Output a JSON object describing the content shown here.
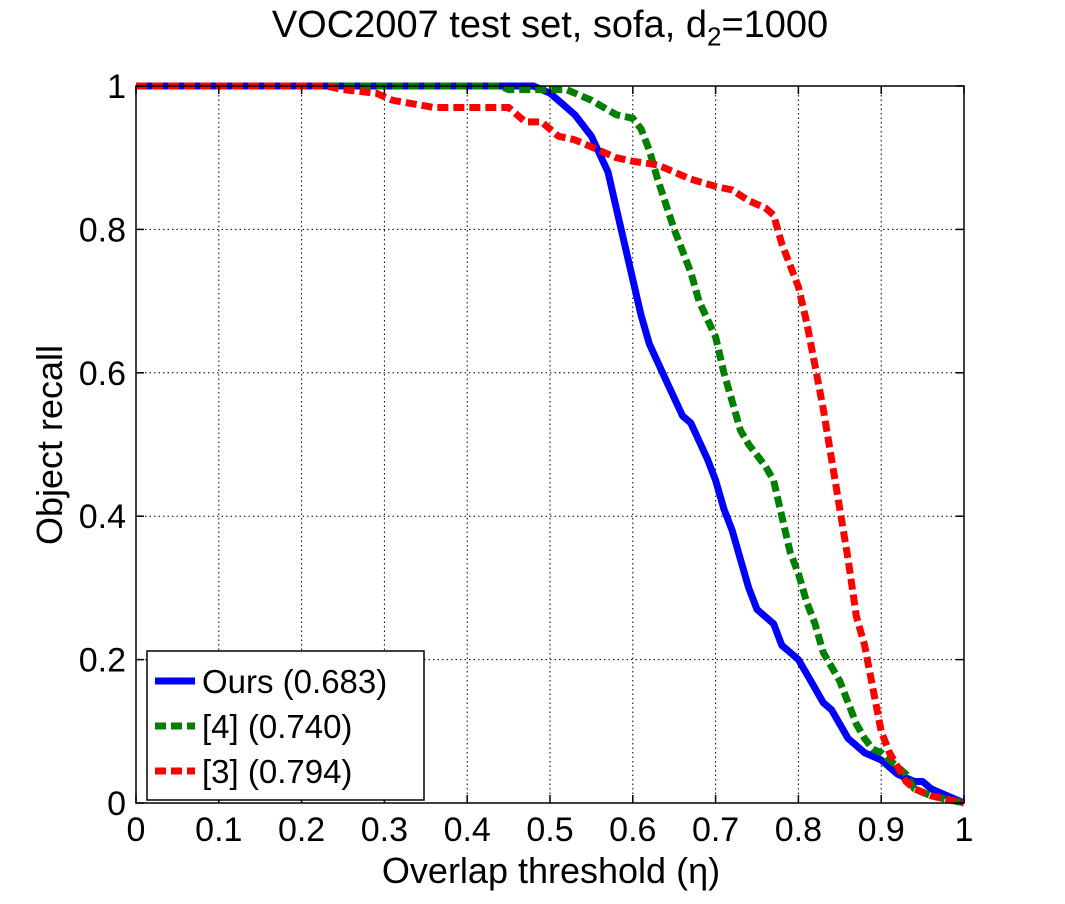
{
  "chart_data": {
    "type": "line",
    "title_main": "VOC2007 test set, sofa, d",
    "title_sub": "2",
    "title_tail": "=1000",
    "xlabel": "Overlap threshold (η)",
    "ylabel": "Object recall",
    "xlim": [
      0,
      1
    ],
    "ylim": [
      0,
      1
    ],
    "grid": true,
    "legend_position": "bottom-left",
    "x_ticks": [
      0,
      0.1,
      0.2,
      0.3,
      0.4,
      0.5,
      0.6,
      0.7,
      0.8,
      0.9,
      1
    ],
    "x_tick_labels": [
      "0",
      "0.1",
      "0.2",
      "0.3",
      "0.4",
      "0.5",
      "0.6",
      "0.7",
      "0.8",
      "0.9",
      "1"
    ],
    "y_ticks": [
      0,
      0.2,
      0.4,
      0.6,
      0.8,
      1
    ],
    "y_tick_labels": [
      "0",
      "0.2",
      "0.4",
      "0.6",
      "0.8",
      "1"
    ],
    "series": [
      {
        "name": "Ours (0.683)",
        "color": "#0000ff",
        "style": "solid",
        "x": [
          0,
          0.48,
          0.5,
          0.52,
          0.53,
          0.55,
          0.57,
          0.58,
          0.59,
          0.6,
          0.61,
          0.62,
          0.64,
          0.66,
          0.67,
          0.69,
          0.7,
          0.71,
          0.72,
          0.73,
          0.74,
          0.75,
          0.76,
          0.77,
          0.78,
          0.79,
          0.8,
          0.81,
          0.82,
          0.83,
          0.84,
          0.85,
          0.86,
          0.87,
          0.88,
          0.9,
          0.92,
          0.94,
          0.95,
          0.96,
          0.98,
          1.0
        ],
        "y": [
          1.0,
          1.0,
          0.99,
          0.97,
          0.96,
          0.93,
          0.88,
          0.83,
          0.78,
          0.73,
          0.68,
          0.64,
          0.59,
          0.54,
          0.53,
          0.48,
          0.45,
          0.41,
          0.38,
          0.34,
          0.3,
          0.27,
          0.26,
          0.25,
          0.22,
          0.21,
          0.2,
          0.18,
          0.16,
          0.14,
          0.13,
          0.11,
          0.09,
          0.08,
          0.07,
          0.06,
          0.04,
          0.03,
          0.03,
          0.02,
          0.01,
          0.0
        ]
      },
      {
        "name": "[4] (0.740)",
        "color": "#007f00",
        "style": "dashed",
        "x": [
          0,
          0.44,
          0.45,
          0.52,
          0.55,
          0.58,
          0.6,
          0.61,
          0.62,
          0.63,
          0.65,
          0.67,
          0.68,
          0.7,
          0.71,
          0.72,
          0.73,
          0.74,
          0.76,
          0.77,
          0.78,
          0.79,
          0.8,
          0.81,
          0.82,
          0.83,
          0.84,
          0.85,
          0.86,
          0.87,
          0.88,
          0.89,
          0.9,
          0.91,
          0.92,
          0.93,
          0.94,
          0.96,
          0.98,
          1.0
        ],
        "y": [
          1.0,
          1.0,
          0.995,
          0.995,
          0.98,
          0.96,
          0.955,
          0.94,
          0.91,
          0.87,
          0.8,
          0.74,
          0.7,
          0.65,
          0.6,
          0.56,
          0.52,
          0.5,
          0.47,
          0.45,
          0.4,
          0.35,
          0.32,
          0.28,
          0.25,
          0.21,
          0.19,
          0.17,
          0.14,
          0.11,
          0.09,
          0.075,
          0.07,
          0.06,
          0.05,
          0.04,
          0.02,
          0.01,
          0.005,
          0.0
        ]
      },
      {
        "name": "[3] (0.794)",
        "color": "#ff0000",
        "style": "dashed",
        "x": [
          0,
          0.23,
          0.25,
          0.29,
          0.31,
          0.36,
          0.45,
          0.46,
          0.47,
          0.49,
          0.51,
          0.53,
          0.56,
          0.58,
          0.6,
          0.63,
          0.65,
          0.67,
          0.7,
          0.72,
          0.74,
          0.76,
          0.77,
          0.78,
          0.79,
          0.8,
          0.81,
          0.82,
          0.83,
          0.84,
          0.85,
          0.86,
          0.87,
          0.88,
          0.89,
          0.9,
          0.91,
          0.92,
          0.93,
          0.94,
          0.96,
          0.98,
          1.0
        ],
        "y": [
          1.0,
          1.0,
          0.995,
          0.99,
          0.98,
          0.97,
          0.97,
          0.96,
          0.95,
          0.95,
          0.93,
          0.925,
          0.91,
          0.9,
          0.895,
          0.89,
          0.88,
          0.87,
          0.86,
          0.855,
          0.84,
          0.83,
          0.82,
          0.78,
          0.75,
          0.72,
          0.67,
          0.61,
          0.55,
          0.48,
          0.41,
          0.34,
          0.26,
          0.22,
          0.16,
          0.1,
          0.07,
          0.05,
          0.03,
          0.02,
          0.01,
          0.005,
          0.0
        ]
      }
    ]
  }
}
